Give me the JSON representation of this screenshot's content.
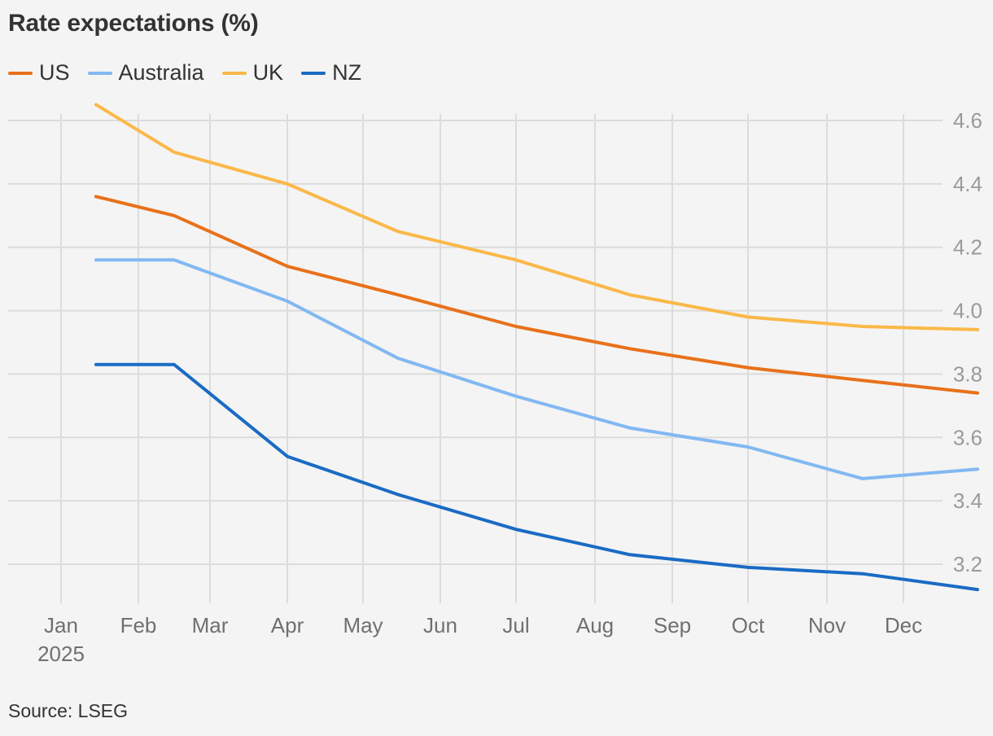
{
  "source": "Source: LSEG",
  "chart_data": {
    "type": "line",
    "title": "Rate expectations (%)",
    "xlabel": "",
    "ylabel": "",
    "x_ticks": [
      "Jan",
      "Feb",
      "Mar",
      "Apr",
      "May",
      "Jun",
      "Jul",
      "Aug",
      "Sep",
      "Oct",
      "Nov",
      "Dec"
    ],
    "x_year_label": "2025",
    "x_dates": [
      "2025-01-15",
      "2025-02-15",
      "2025-04-01",
      "2025-05-15",
      "2025-07-01",
      "2025-08-15",
      "2025-10-01",
      "2025-11-15",
      "2025-12-31"
    ],
    "ylim": [
      3.13,
      4.66
    ],
    "y_ticks": [
      "3.2",
      "3.4",
      "3.6",
      "3.8",
      "4.0",
      "4.2",
      "4.4",
      "4.6"
    ],
    "grid": true,
    "legend_position": "top-left",
    "series": [
      {
        "name": "US",
        "color": "#e8711a",
        "values": [
          4.36,
          4.3,
          4.14,
          4.05,
          3.95,
          3.88,
          3.82,
          3.78,
          3.74
        ]
      },
      {
        "name": "Australia",
        "color": "#82b8f2",
        "values": [
          4.16,
          4.16,
          4.03,
          3.85,
          3.73,
          3.63,
          3.57,
          3.47,
          3.5
        ]
      },
      {
        "name": "UK",
        "color": "#fbb849",
        "values": [
          4.65,
          4.5,
          4.4,
          4.25,
          4.16,
          4.05,
          3.98,
          3.95,
          3.94
        ]
      },
      {
        "name": "NZ",
        "color": "#1a6bc4",
        "values": [
          3.83,
          3.83,
          3.54,
          3.42,
          3.31,
          3.23,
          3.19,
          3.17,
          3.12
        ]
      }
    ]
  }
}
